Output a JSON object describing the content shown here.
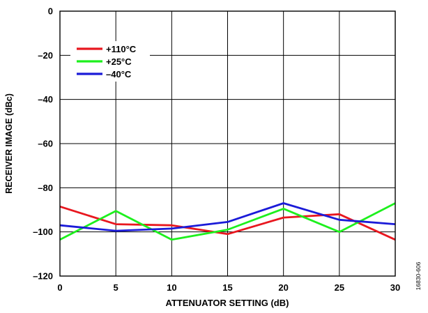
{
  "chart_data": {
    "type": "line",
    "title": "",
    "xlabel": "ATTENUATOR SETTING (dB)",
    "ylabel": "RECEIVER IMAGE (dBc)",
    "xlim": [
      0,
      30
    ],
    "ylim": [
      -120,
      0
    ],
    "x_ticks": [
      0,
      5,
      10,
      15,
      20,
      25,
      30
    ],
    "y_ticks": [
      0,
      -20,
      -40,
      -60,
      -80,
      -100,
      -120
    ],
    "x_tick_labels": [
      "0",
      "5",
      "10",
      "15",
      "20",
      "25",
      "30"
    ],
    "y_tick_labels": [
      "0",
      "–20",
      "–40",
      "–60",
      "–80",
      "–100",
      "–120"
    ],
    "grid": true,
    "legend_placement": "top-left",
    "series": [
      {
        "name": "+110°C",
        "color": "#e8171f",
        "x": [
          0,
          5,
          10,
          15,
          20,
          25,
          30
        ],
        "y": [
          -88.5,
          -96.5,
          -97,
          -101,
          -93.5,
          -92,
          -103.5
        ]
      },
      {
        "name": "+25°C",
        "color": "#1df01d",
        "x": [
          0,
          5,
          10,
          15,
          20,
          25,
          30
        ],
        "y": [
          -103.5,
          -90.5,
          -103.5,
          -99,
          -89.5,
          -100,
          -87
        ]
      },
      {
        "name": "–40°C",
        "color": "#1b1bd8",
        "x": [
          0,
          5,
          10,
          15,
          20,
          25,
          30
        ],
        "y": [
          -97,
          -99.5,
          -98.5,
          -95.5,
          -87,
          -94.5,
          -96.5
        ]
      }
    ]
  },
  "figure_id": "16830-606"
}
